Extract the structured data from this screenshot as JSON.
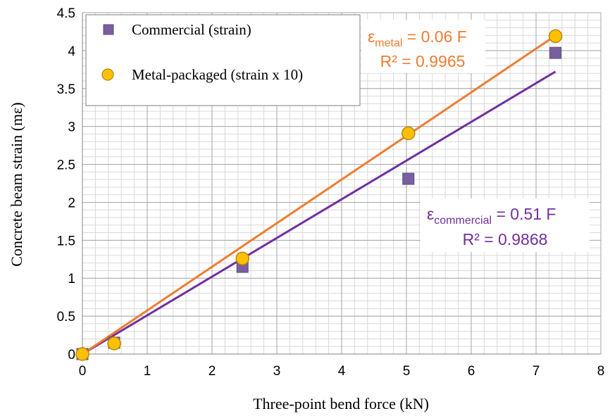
{
  "chart_data": {
    "type": "scatter",
    "xlabel": "Three-point bend force (kN)",
    "ylabel": "Concrete beam strain (mε)",
    "xlim": [
      0,
      8
    ],
    "ylim": [
      0,
      4.5
    ],
    "x_ticks": [
      "0",
      "1",
      "2",
      "3",
      "4",
      "5",
      "6",
      "7",
      "8"
    ],
    "y_ticks": [
      "0",
      "0.5",
      "1",
      "1.5",
      "2",
      "2.5",
      "3",
      "3.5",
      "4",
      "4.5"
    ],
    "grid": true,
    "minor_grid": true,
    "legend_position": "top-left",
    "series": [
      {
        "name": "Commercial (strain)",
        "marker": "square",
        "color": "#7a5fa0",
        "x": [
          0,
          0.49,
          2.47,
          5.03,
          7.3
        ],
        "y": [
          0,
          0.15,
          1.15,
          2.31,
          3.97
        ],
        "trendline": {
          "slope": 0.51,
          "color": "#7030a0",
          "equation": {
            "symbol": "ε",
            "subscript": "commercial",
            "rhs": " = 0.51 F"
          },
          "r2": "R² = 0.9868"
        }
      },
      {
        "name": "Metal-packaged (strain x 10)",
        "marker": "circle",
        "color": "#ffc000",
        "x": [
          0,
          0.49,
          2.47,
          5.03,
          7.3
        ],
        "y": [
          0,
          0.14,
          1.26,
          2.91,
          4.19
        ],
        "trendline": {
          "slope": 0.575,
          "color": "#ed7d31",
          "equation": {
            "symbol": "ε",
            "subscript": "metal",
            "rhs": " = 0.06 F"
          },
          "r2": "R² = 0.9965"
        }
      }
    ]
  }
}
